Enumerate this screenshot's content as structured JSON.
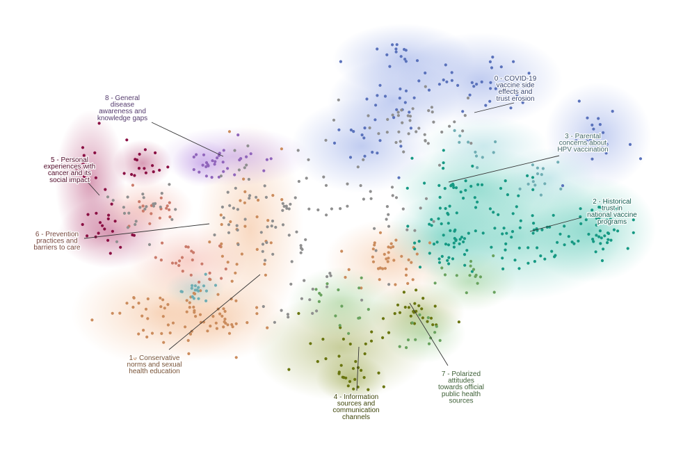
{
  "chart_data": {
    "type": "scatter",
    "title": "",
    "xlabel": "",
    "ylabel": "",
    "grid": false,
    "legend": "none",
    "clusters": [
      {
        "id": 0,
        "name": "0 - COVID-19 vaccine side effects and trust erosion",
        "label_lines": [
          "0 - COVID-19",
          "vaccine side",
          "effects and",
          "trust erosion"
        ],
        "color": "#6a86dc"
      },
      {
        "id": 1,
        "name": "1 - Conservative norms and sexual health education",
        "label_lines": [
          "1 - Conservative",
          "norms and sexual",
          "health education"
        ],
        "color": "#efa56d"
      },
      {
        "id": 2,
        "name": "2 - Historical trust in national vaccine programs",
        "label_lines": [
          "2 - Historical",
          "trust in",
          "national vaccine",
          "programs"
        ],
        "color": "#1ab49a"
      },
      {
        "id": 3,
        "name": "3 - Parental concerns about HPV vaccination",
        "label_lines": [
          "3 - Parental",
          "concerns about",
          "HPV vaccination"
        ],
        "color": "#82cbd2"
      },
      {
        "id": 4,
        "name": "4 - Information sources and communication channels",
        "label_lines": [
          "4 - Information",
          "sources and",
          "communication",
          "channels"
        ],
        "color": "#7b8a12"
      },
      {
        "id": 5,
        "name": "5 - Personal experiences with cancer and its social impact",
        "label_lines": [
          "5 - Personal",
          "experiences with",
          "cancer and its",
          "social impact"
        ],
        "color": "#a2124f"
      },
      {
        "id": 6,
        "name": "6 - Prevention practices and barriers to care",
        "label_lines": [
          "6 - Prevention",
          "practices and",
          "barriers to care"
        ],
        "color": "#ee8f7d"
      },
      {
        "id": 7,
        "name": "7 - Polarized attitudes towards official public health sources",
        "label_lines": [
          "7 - Polarized",
          "attitudes",
          "towards official",
          "public health",
          "sources"
        ],
        "color": "#7cbf6e"
      },
      {
        "id": 8,
        "name": "8 - General disease awareness and knowledge gaps",
        "label_lines": [
          "8 - General",
          "disease",
          "awareness and",
          "knowledge gaps"
        ],
        "color": "#a977dc"
      }
    ],
    "outlier_color": "#8f8f8f"
  }
}
